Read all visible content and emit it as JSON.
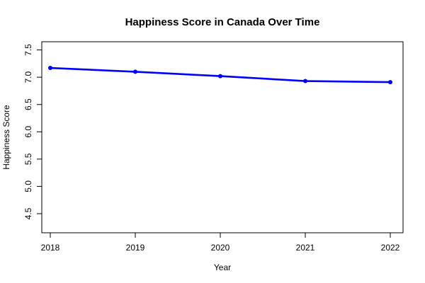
{
  "chart_data": {
    "type": "line",
    "title": "Happiness Score in Canada Over Time",
    "xlabel": "Year",
    "ylabel": "Happiness Score",
    "x": [
      2018,
      2019,
      2020,
      2021,
      2022
    ],
    "series": [
      {
        "values": [
          7.17,
          7.1,
          7.02,
          6.93,
          6.91
        ],
        "color": "#0000ff"
      }
    ],
    "xlim": [
      2017.9,
      2022.15
    ],
    "ylim": [
      4.15,
      7.65
    ],
    "yticks": [
      4.5,
      5.0,
      5.5,
      6.0,
      6.5,
      7.0,
      7.5
    ],
    "ytick_labels": [
      "4.5",
      "5.0",
      "5.5",
      "6.0",
      "6.5",
      "7.0",
      "7.5"
    ],
    "xticks": [
      2018,
      2019,
      2020,
      2021,
      2022
    ],
    "xtick_labels": [
      "2018",
      "2019",
      "2020",
      "2021",
      "2022"
    ],
    "grid": false,
    "markers": "filled-circle"
  }
}
